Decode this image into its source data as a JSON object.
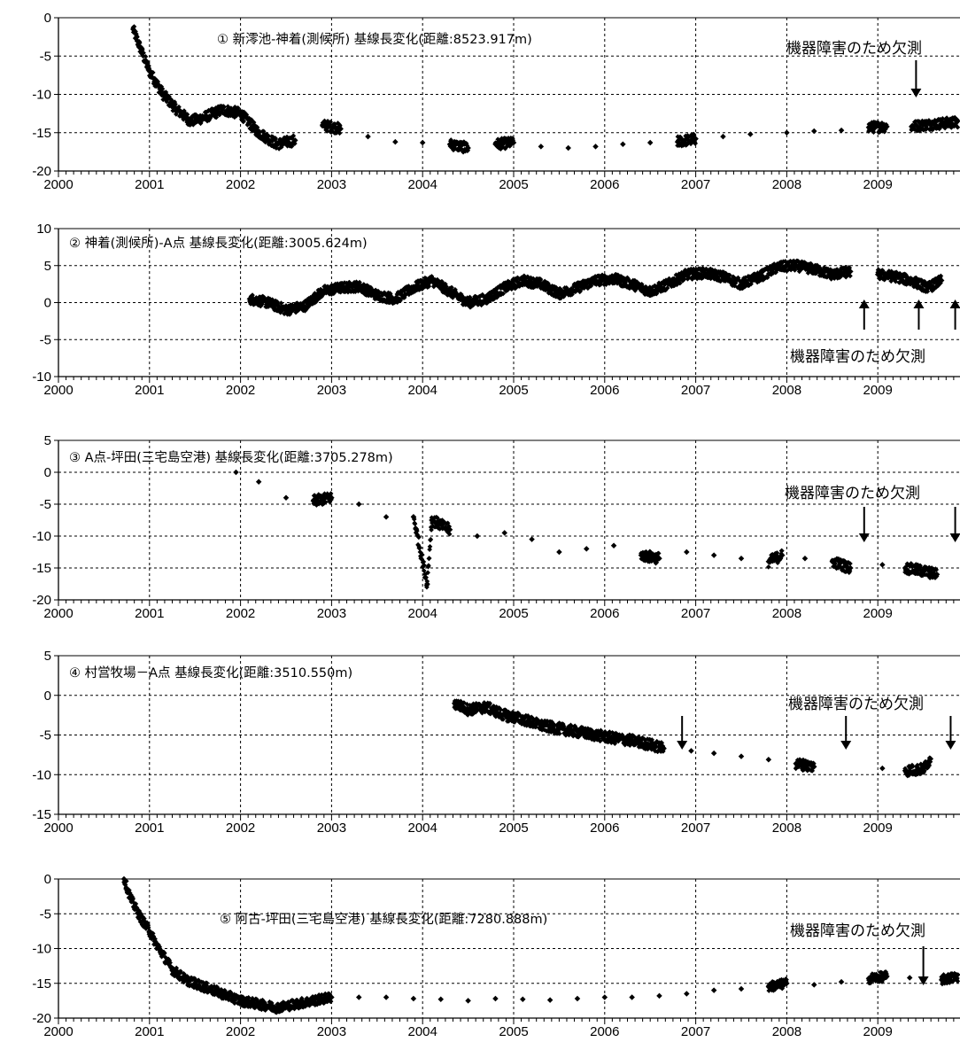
{
  "chart_data": [
    {
      "type": "scatter",
      "title": "① 新澪池-神着(測候所) 基線長変化(距離:8523.917m)",
      "x_ticks": [
        "2000",
        "2001",
        "2002",
        "2003",
        "2004",
        "2005",
        "2006",
        "2007",
        "2008",
        "2009"
      ],
      "y_ticks": [
        "0",
        "-5",
        "-10",
        "-15",
        "-20"
      ],
      "ylim": [
        -20,
        0
      ],
      "xlim": [
        2000,
        2010
      ],
      "grid": true,
      "annotations": [
        {
          "text": "機器障害のため欠測",
          "arrows_at": [
            2009.42
          ],
          "arrow_direction": "down"
        }
      ],
      "series": [
        {
          "points": [
            [
              2000.82,
              -1.5
            ],
            [
              2000.9,
              -4
            ],
            [
              2001.0,
              -7
            ],
            [
              2001.15,
              -10
            ],
            [
              2001.3,
              -12
            ],
            [
              2001.45,
              -13.5
            ],
            [
              2001.6,
              -13
            ],
            [
              2001.8,
              -12
            ],
            [
              2002.0,
              -12.5
            ],
            [
              2002.2,
              -15
            ],
            [
              2002.4,
              -16.5
            ],
            [
              2002.6,
              -16
            ],
            [
              2002.9,
              -14
            ],
            [
              2003.1,
              -14.5
            ],
            [
              2003.4,
              -15.5
            ],
            [
              2003.7,
              -16.2
            ],
            [
              2004.0,
              -16.3
            ],
            [
              2004.3,
              -16.5
            ],
            [
              2004.5,
              -17
            ],
            [
              2004.8,
              -16.5
            ],
            [
              2005.0,
              -16.3
            ],
            [
              2005.3,
              -16.8
            ],
            [
              2005.6,
              -17
            ],
            [
              2005.9,
              -16.8
            ],
            [
              2006.2,
              -16.5
            ],
            [
              2006.5,
              -16.3
            ],
            [
              2006.8,
              -16.2
            ],
            [
              2007.0,
              -15.8
            ],
            [
              2007.3,
              -15.5
            ],
            [
              2007.6,
              -15.2
            ],
            [
              2008.0,
              -15
            ],
            [
              2008.3,
              -14.8
            ],
            [
              2008.6,
              -14.7
            ],
            [
              2008.9,
              -14.3
            ],
            [
              2009.1,
              -14.2
            ],
            [
              2009.37,
              -14.2
            ],
            [
              2009.5,
              -14
            ],
            [
              2009.7,
              -13.8
            ],
            [
              2009.9,
              -13.6
            ]
          ]
        }
      ]
    },
    {
      "type": "scatter",
      "title": "② 神着(測候所)-A点 基線長変化(距離:3005.624m)",
      "x_ticks": [
        "2000",
        "2001",
        "2002",
        "2003",
        "2004",
        "2005",
        "2006",
        "2007",
        "2008",
        "2009"
      ],
      "y_ticks": [
        "10",
        "5",
        "0",
        "-5",
        "-10"
      ],
      "ylim": [
        -10,
        10
      ],
      "xlim": [
        2000,
        2010
      ],
      "grid": true,
      "annotations": [
        {
          "text": "機器障害のため欠測",
          "arrows_at": [
            2008.85,
            2009.45,
            2009.85
          ],
          "arrow_direction": "up"
        }
      ],
      "series": [
        {
          "points": [
            [
              2002.1,
              0.5
            ],
            [
              2002.3,
              0
            ],
            [
              2002.5,
              -1
            ],
            [
              2002.7,
              -0.5
            ],
            [
              2002.9,
              1.5
            ],
            [
              2003.1,
              2
            ],
            [
              2003.3,
              2.2
            ],
            [
              2003.5,
              1
            ],
            [
              2003.7,
              0.5
            ],
            [
              2003.9,
              2
            ],
            [
              2004.1,
              3
            ],
            [
              2004.3,
              1.5
            ],
            [
              2004.5,
              0
            ],
            [
              2004.7,
              0.5
            ],
            [
              2004.9,
              2
            ],
            [
              2005.1,
              3
            ],
            [
              2005.3,
              2.5
            ],
            [
              2005.5,
              1.2
            ],
            [
              2005.7,
              2
            ],
            [
              2005.9,
              3
            ],
            [
              2006.1,
              3.2
            ],
            [
              2006.3,
              2.5
            ],
            [
              2006.5,
              1.5
            ],
            [
              2006.7,
              2.5
            ],
            [
              2006.9,
              3.8
            ],
            [
              2007.1,
              4
            ],
            [
              2007.3,
              3.5
            ],
            [
              2007.5,
              2.5
            ],
            [
              2007.7,
              3.5
            ],
            [
              2007.9,
              4.8
            ],
            [
              2008.1,
              5
            ],
            [
              2008.3,
              4.5
            ],
            [
              2008.5,
              3.8
            ],
            [
              2008.7,
              4.2
            ],
            [
              2009.0,
              3.8
            ],
            [
              2009.2,
              3.5
            ],
            [
              2009.4,
              2.8
            ],
            [
              2009.55,
              2
            ],
            [
              2009.7,
              3
            ]
          ]
        }
      ]
    },
    {
      "type": "scatter",
      "title": "③ A点-坪田(三宅島空港) 基線長変化(距離:3705.278m)",
      "x_ticks": [
        "2000",
        "2001",
        "2002",
        "2003",
        "2004",
        "2005",
        "2006",
        "2007",
        "2008",
        "2009"
      ],
      "y_ticks": [
        "5",
        "0",
        "-5",
        "-10",
        "-15",
        "-20"
      ],
      "ylim": [
        -20,
        5
      ],
      "xlim": [
        2000,
        2010
      ],
      "grid": true,
      "annotations": [
        {
          "text": "機器障害のため欠測",
          "arrows_at": [
            2008.85,
            2009.85
          ],
          "arrow_direction": "down"
        }
      ],
      "series": [
        {
          "points": [
            [
              2001.95,
              0
            ],
            [
              2002.2,
              -1.5
            ],
            [
              2002.5,
              -4
            ],
            [
              2002.8,
              -4.5
            ],
            [
              2003.0,
              -4
            ],
            [
              2003.3,
              -5
            ],
            [
              2003.6,
              -7
            ],
            [
              2003.9,
              -7
            ],
            [
              2004.1,
              -7.5
            ],
            [
              2004.3,
              -9
            ],
            [
              2004.6,
              -10
            ],
            [
              2004.9,
              -9.5
            ],
            [
              2005.2,
              -10.5
            ],
            [
              2005.5,
              -12.5
            ],
            [
              2005.8,
              -12
            ],
            [
              2006.1,
              -11.5
            ],
            [
              2006.4,
              -13
            ],
            [
              2006.6,
              -13.5
            ],
            [
              2006.9,
              -12.5
            ],
            [
              2007.2,
              -13
            ],
            [
              2007.5,
              -13.5
            ],
            [
              2007.8,
              -14
            ],
            [
              2007.95,
              -13
            ],
            [
              2008.2,
              -13.5
            ],
            [
              2008.5,
              -14
            ],
            [
              2008.7,
              -15
            ],
            [
              2009.05,
              -14.5
            ],
            [
              2009.3,
              -15
            ],
            [
              2009.5,
              -15.5
            ],
            [
              2009.65,
              -16
            ],
            [
              2004.05,
              -17.5
            ]
          ]
        }
      ]
    },
    {
      "type": "scatter",
      "title": "④ 村営牧場－A点 基線長変化(距離:3510.550m)",
      "x_ticks": [
        "2000",
        "2001",
        "2002",
        "2003",
        "2004",
        "2005",
        "2006",
        "2007",
        "2008",
        "2009"
      ],
      "y_ticks": [
        "5",
        "0",
        "-5",
        "-10",
        "-15"
      ],
      "ylim": [
        -15,
        5
      ],
      "xlim": [
        2000,
        2010
      ],
      "grid": true,
      "annotations": [
        {
          "text": "機器障害のため欠測",
          "arrows_at": [
            2006.85,
            2008.65,
            2009.8
          ],
          "arrow_direction": "down"
        }
      ],
      "series": [
        {
          "points": [
            [
              2004.35,
              -1
            ],
            [
              2004.5,
              -1.8
            ],
            [
              2004.7,
              -1.5
            ],
            [
              2004.9,
              -2.5
            ],
            [
              2005.1,
              -3
            ],
            [
              2005.3,
              -3.8
            ],
            [
              2005.5,
              -4.2
            ],
            [
              2005.7,
              -4.6
            ],
            [
              2005.9,
              -5
            ],
            [
              2006.1,
              -5.4
            ],
            [
              2006.3,
              -5.7
            ],
            [
              2006.5,
              -6.2
            ],
            [
              2006.65,
              -6.7
            ],
            [
              2006.95,
              -7
            ],
            [
              2007.2,
              -7.3
            ],
            [
              2007.5,
              -7.7
            ],
            [
              2007.8,
              -8.1
            ],
            [
              2008.1,
              -8.6
            ],
            [
              2008.3,
              -9
            ],
            [
              2009.05,
              -9.2
            ],
            [
              2009.3,
              -9.5
            ],
            [
              2009.5,
              -9.3
            ],
            [
              2009.58,
              -8
            ]
          ]
        }
      ]
    },
    {
      "type": "scatter",
      "title": "⑤ 阿古-坪田(三宅島空港) 基線長変化(距離:7280.888m)",
      "x_ticks": [
        "2000",
        "2001",
        "2002",
        "2003",
        "2004",
        "2005",
        "2006",
        "2007",
        "2008",
        "2009"
      ],
      "y_ticks": [
        "0",
        "-5",
        "-10",
        "-15",
        "-20"
      ],
      "ylim": [
        -20,
        0
      ],
      "xlim": [
        2000,
        2010
      ],
      "grid": true,
      "annotations": [
        {
          "text": "機器障害のため欠測",
          "arrows_at": [
            2009.5
          ],
          "arrow_direction": "down"
        }
      ],
      "series": [
        {
          "points": [
            [
              2000.72,
              0
            ],
            [
              2000.8,
              -3
            ],
            [
              2000.9,
              -5.5
            ],
            [
              2001.0,
              -7.5
            ],
            [
              2001.08,
              -9.5
            ],
            [
              2001.25,
              -13
            ],
            [
              2001.4,
              -14.5
            ],
            [
              2001.6,
              -15.5
            ],
            [
              2001.8,
              -16.5
            ],
            [
              2002.0,
              -17.5
            ],
            [
              2002.2,
              -18
            ],
            [
              2002.4,
              -18.5
            ],
            [
              2002.6,
              -18
            ],
            [
              2002.8,
              -17.5
            ],
            [
              2003.0,
              -17
            ],
            [
              2003.3,
              -17
            ],
            [
              2003.6,
              -17
            ],
            [
              2003.9,
              -17.2
            ],
            [
              2004.2,
              -17.3
            ],
            [
              2004.5,
              -17.5
            ],
            [
              2004.8,
              -17.2
            ],
            [
              2005.1,
              -17.3
            ],
            [
              2005.4,
              -17.4
            ],
            [
              2005.7,
              -17.2
            ],
            [
              2006.0,
              -17
            ],
            [
              2006.3,
              -17
            ],
            [
              2006.6,
              -16.8
            ],
            [
              2006.9,
              -16.5
            ],
            [
              2007.2,
              -16
            ],
            [
              2007.5,
              -15.8
            ],
            [
              2007.8,
              -15.5
            ],
            [
              2008.0,
              -15
            ],
            [
              2008.3,
              -15.2
            ],
            [
              2008.6,
              -14.8
            ],
            [
              2008.9,
              -14.3
            ],
            [
              2009.1,
              -14
            ],
            [
              2009.35,
              -14.2
            ],
            [
              2009.7,
              -14.5
            ],
            [
              2009.9,
              -14
            ]
          ]
        }
      ]
    }
  ]
}
